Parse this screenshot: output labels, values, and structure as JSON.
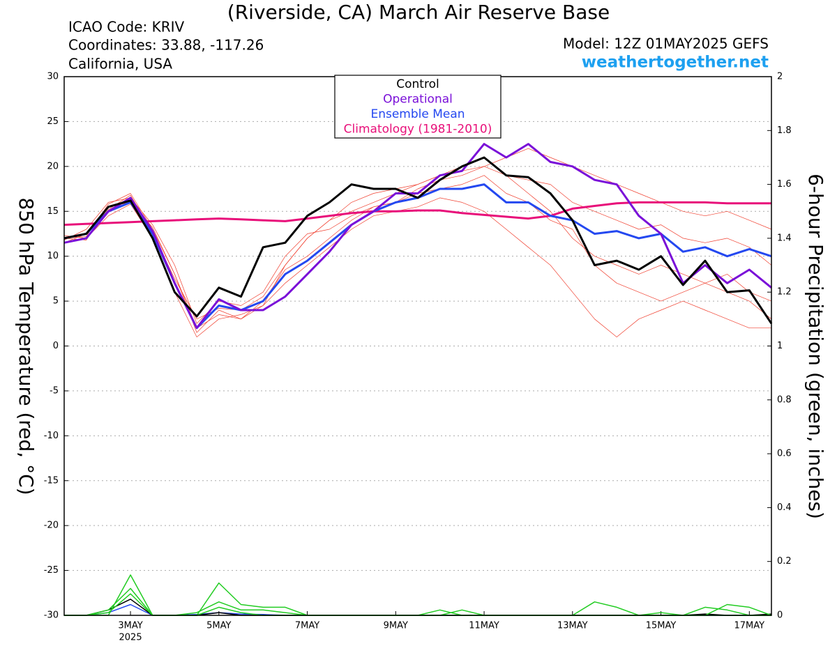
{
  "chart_data": {
    "type": "line",
    "title": "(Riverside, CA) March Air Reserve Base",
    "info_lines": [
      "ICAO Code: KRIV",
      "Coordinates: 33.88, -117.26",
      "California, USA"
    ],
    "model": "Model: 12Z 01MAY2025 GEFS",
    "site": "weathertogether.net",
    "y_label": "850 hPa Temperature (red, °C)",
    "y2_label": "6-hour Precipitation (green, inches)",
    "x_year": "2025",
    "xlim": [
      0,
      16
    ],
    "xticks": [
      {
        "value": 1.5,
        "label": "3MAY"
      },
      {
        "value": 3.5,
        "label": "5MAY"
      },
      {
        "value": 5.5,
        "label": "7MAY"
      },
      {
        "value": 7.5,
        "label": "9MAY"
      },
      {
        "value": 9.5,
        "label": "11MAY"
      },
      {
        "value": 11.5,
        "label": "13MAY"
      },
      {
        "value": 13.5,
        "label": "15MAY"
      },
      {
        "value": 15.5,
        "label": "17MAY"
      }
    ],
    "ylim": [
      -30,
      30
    ],
    "yticks": [
      -30,
      -25,
      -20,
      -15,
      -10,
      -5,
      0,
      5,
      10,
      15,
      20,
      25,
      30
    ],
    "y2lim": [
      0,
      2
    ],
    "y2ticks": [
      0,
      0.2,
      0.4,
      0.6,
      0.8,
      1,
      1.2,
      1.4,
      1.6,
      1.8,
      2
    ],
    "grid": true,
    "legend": "top",
    "x": [
      0,
      0.5,
      1,
      1.5,
      2,
      2.5,
      3,
      3.5,
      4,
      4.5,
      5,
      5.5,
      6,
      6.5,
      7,
      7.5,
      8,
      8.5,
      9,
      9.5,
      10,
      10.5,
      11,
      11.5,
      12,
      12.5,
      13,
      13.5,
      14,
      14.5,
      15,
      15.5,
      16
    ],
    "series": [
      {
        "name": "Control",
        "color": "#000000",
        "values": [
          12,
          12.5,
          15.5,
          16.2,
          12,
          6,
          3.3,
          6.5,
          5.5,
          11,
          11.5,
          14.5,
          16,
          18,
          17.5,
          17.5,
          16.5,
          18.5,
          20,
          21,
          19,
          18.8,
          17,
          14,
          9,
          9.5,
          8.5,
          10,
          6.8,
          9.5,
          6,
          6.2,
          2.5
        ]
      },
      {
        "name": "Operational",
        "color": "#7a10d8",
        "values": [
          11.5,
          12,
          15,
          16.5,
          12.8,
          7,
          2,
          5.2,
          4,
          4,
          5.5,
          8,
          10.5,
          13.5,
          15,
          17,
          17,
          19,
          19.5,
          22.5,
          21,
          22.5,
          20.5,
          20,
          18.5,
          18,
          14.5,
          12.5,
          7,
          9,
          7,
          8.5,
          6.5
        ]
      },
      {
        "name": "Ensemble Mean",
        "color": "#2448f0",
        "values": [
          12,
          12.5,
          15,
          16,
          12.5,
          7,
          2,
          4.5,
          4,
          5,
          8,
          9.5,
          11.5,
          13.5,
          15,
          16,
          16.5,
          17.5,
          17.5,
          18,
          16,
          16,
          14.5,
          14,
          12.5,
          12.8,
          12,
          12.5,
          10.5,
          11,
          10,
          10.8,
          10
        ]
      },
      {
        "name": "Climatology (1981-2010)",
        "color": "#e8107a",
        "values": [
          13.5,
          13.6,
          13.7,
          13.8,
          13.9,
          14,
          14.1,
          14.2,
          14.1,
          14,
          13.9,
          14.2,
          14.5,
          14.8,
          15,
          15,
          15.1,
          15.1,
          14.8,
          14.6,
          14.4,
          14.2,
          14.5,
          15.3,
          15.6,
          15.9,
          16,
          16,
          16,
          16,
          15.9,
          15.9,
          15.9
        ]
      },
      {
        "color": "#f04030",
        "values": [
          12,
          12.2,
          15.8,
          17,
          13,
          8,
          1.5,
          4,
          3,
          4.5,
          9,
          12,
          14,
          15,
          16,
          17,
          18,
          19,
          20,
          21,
          19,
          17,
          15,
          12,
          10,
          9,
          8,
          9,
          8,
          7,
          6,
          5,
          3
        ]
      },
      {
        "color": "#f04030",
        "values": [
          11.8,
          13,
          16,
          16.5,
          13.5,
          9,
          2.5,
          5,
          4.5,
          6,
          10,
          12.5,
          13,
          14.5,
          15.5,
          16,
          17.5,
          18.5,
          19,
          20,
          19,
          18.5,
          18,
          16,
          15,
          14,
          13,
          13.5,
          12,
          11.5,
          12,
          11,
          9
        ]
      },
      {
        "color": "#f04030",
        "values": [
          12.3,
          12,
          14.5,
          15.8,
          12,
          6,
          1,
          3,
          3.5,
          4.5,
          7,
          9,
          11,
          13,
          14.5,
          15,
          15.5,
          16.5,
          16,
          15,
          13,
          11,
          9,
          6,
          3,
          1,
          3,
          4,
          5,
          4,
          3,
          2,
          2
        ]
      },
      {
        "color": "#f04030",
        "values": [
          11.5,
          12.5,
          15.2,
          16.8,
          12.6,
          7.5,
          3,
          4.2,
          4,
          5.5,
          9,
          12,
          14,
          16,
          17,
          17.5,
          18,
          19,
          19.5,
          20,
          21,
          22,
          21,
          20,
          19,
          18,
          17,
          16,
          15,
          14.5,
          15,
          14,
          13
        ]
      },
      {
        "color": "#f04030",
        "values": [
          12,
          11.8,
          15.5,
          16,
          13.2,
          8,
          2,
          3.5,
          3,
          5,
          8.5,
          10,
          12,
          14,
          15.5,
          16,
          17,
          17.5,
          18,
          19,
          17,
          16,
          14,
          13,
          9,
          7,
          6,
          5,
          6,
          7,
          8,
          6,
          5
        ]
      },
      {
        "color": "#22cc22",
        "axis": "y2",
        "values": [
          0,
          0,
          0,
          0.15,
          0,
          0,
          0,
          0.12,
          0.04,
          0.03,
          0.03,
          0,
          0,
          0,
          0,
          0,
          0,
          0.02,
          0,
          0,
          0,
          0,
          0,
          0,
          0.05,
          0.03,
          0,
          0,
          0,
          0,
          0.04,
          0.03,
          0
        ]
      },
      {
        "color": "#22cc22",
        "axis": "y2",
        "values": [
          0,
          0,
          0.02,
          0.1,
          0,
          0,
          0.01,
          0.05,
          0.02,
          0.02,
          0.01,
          0,
          0,
          0,
          0,
          0,
          0,
          0,
          0,
          0,
          0,
          0,
          0,
          0,
          0,
          0,
          0,
          0,
          0,
          0,
          0,
          0,
          0
        ]
      },
      {
        "color": "#22cc22",
        "axis": "y2",
        "values": [
          0,
          0,
          0.01,
          0.08,
          0,
          0,
          0,
          0.03,
          0.01,
          0,
          0,
          0,
          0,
          0,
          0,
          0,
          0,
          0,
          0.02,
          0,
          0,
          0,
          0,
          0,
          0,
          0,
          0,
          0.01,
          0,
          0.03,
          0.02,
          0,
          0
        ]
      },
      {
        "color": "#000000",
        "axis": "y2",
        "values": [
          0,
          0,
          0.02,
          0.06,
          0,
          0,
          0,
          0.01,
          0,
          0,
          0,
          0,
          0,
          0,
          0,
          0,
          0,
          0,
          0,
          0,
          0,
          0,
          0,
          0,
          0,
          0,
          0,
          0,
          0,
          0.005,
          0,
          0,
          0.005
        ]
      },
      {
        "color": "#2448f0",
        "axis": "y2",
        "values": [
          0,
          0,
          0.01,
          0.04,
          0,
          0,
          0.003,
          0.01,
          0.005,
          0.003,
          0,
          0,
          0,
          0,
          0,
          0,
          0,
          0,
          0,
          0,
          0,
          0,
          0,
          0,
          0,
          0,
          0,
          0,
          0,
          0,
          0,
          0,
          0.003
        ]
      }
    ]
  }
}
